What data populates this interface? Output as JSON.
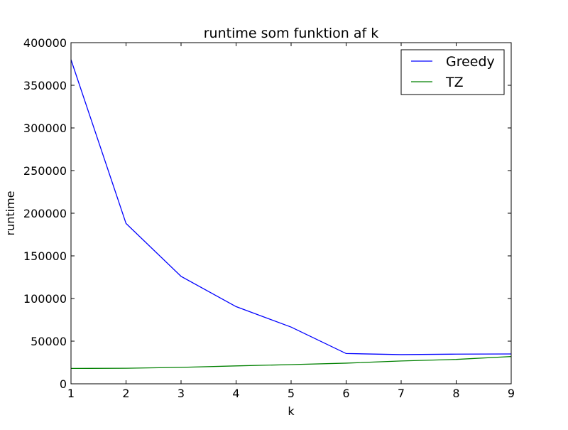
{
  "chart_data": {
    "type": "line",
    "title": "runtime som funktion af k",
    "xlabel": "k",
    "ylabel": "runtime",
    "xlim": [
      1,
      9
    ],
    "ylim": [
      0,
      400000
    ],
    "x": [
      1,
      2,
      3,
      4,
      5,
      6,
      7,
      8,
      9
    ],
    "x_ticks": [
      "1",
      "2",
      "3",
      "4",
      "5",
      "6",
      "7",
      "8",
      "9"
    ],
    "y_ticks": [
      "0",
      "50000",
      "100000",
      "150000",
      "200000",
      "250000",
      "300000",
      "350000",
      "400000"
    ],
    "grid": false,
    "legend": "top-right",
    "series": [
      {
        "name": "Greedy",
        "color": "#0000ff",
        "values": [
          380000,
          188000,
          126000,
          90500,
          66500,
          35500,
          34200,
          34800,
          35000
        ]
      },
      {
        "name": "TZ",
        "color": "#008000",
        "values": [
          18000,
          18200,
          19300,
          21000,
          22500,
          24200,
          26800,
          28600,
          32000
        ]
      }
    ]
  }
}
